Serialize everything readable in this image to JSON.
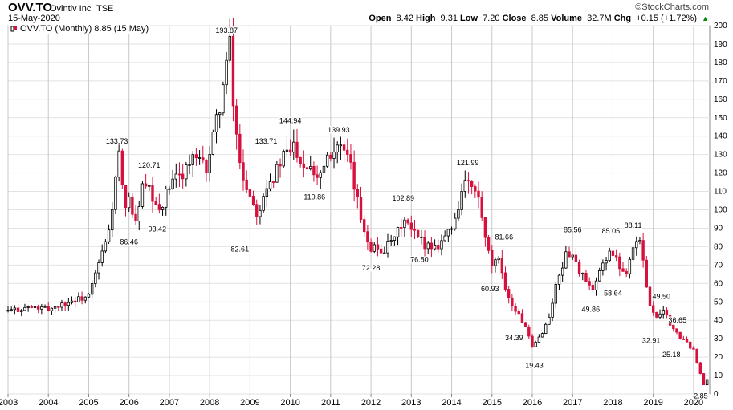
{
  "header": {
    "symbol": "OVV.TO",
    "company": "Ovintiv Inc",
    "exchange": "TSE",
    "date": "15-May-2020",
    "credit": "©StockCharts.com",
    "open_label": "Open",
    "open": "8.42",
    "high_label": "High",
    "high": "9.31",
    "low_label": "Low",
    "low": "7.20",
    "close_label": "Close",
    "close": "8.85",
    "volume_label": "Volume",
    "volume": "32.7M",
    "chg_label": "Chg",
    "chg": "+0.15 (+1.72%)",
    "chg_arrow": "▲"
  },
  "legend": {
    "text": "OVV.TO (Monthly) 8.85 (15 May)"
  },
  "chart_data": {
    "type": "candlestick",
    "title": "OVV.TO (Monthly) 8.85 (15 May)",
    "x_range": [
      2003.0,
      2020.4
    ],
    "ylim": [
      0,
      200
    ],
    "y_ticks": [
      0,
      10,
      20,
      30,
      40,
      50,
      60,
      70,
      80,
      90,
      100,
      110,
      120,
      130,
      140,
      150,
      160,
      170,
      180,
      190,
      200
    ],
    "x_ticks": [
      "2003",
      "2004",
      "2005",
      "2006",
      "2007",
      "2008",
      "2009",
      "2010",
      "2011",
      "2012",
      "2013",
      "2014",
      "2015",
      "2016",
      "2017",
      "2018",
      "2019",
      "2020"
    ],
    "grid": true,
    "colors": {
      "up": "#000000",
      "down": "#d6113d"
    },
    "anchors": [
      [
        2003.0,
        45
      ],
      [
        2003.5,
        47
      ],
      [
        2004.0,
        46
      ],
      [
        2004.5,
        50
      ],
      [
        2005.0,
        53
      ],
      [
        2005.5,
        88
      ],
      [
        2005.75,
        130
      ],
      [
        2005.9,
        96
      ],
      [
        2006.0,
        110
      ],
      [
        2006.15,
        89
      ],
      [
        2006.3,
        112
      ],
      [
        2006.5,
        110
      ],
      [
        2006.7,
        98
      ],
      [
        2007.0,
        112
      ],
      [
        2007.3,
        120
      ],
      [
        2007.6,
        128
      ],
      [
        2007.9,
        122
      ],
      [
        2008.1,
        140
      ],
      [
        2008.4,
        175
      ],
      [
        2008.5,
        190
      ],
      [
        2008.6,
        150
      ],
      [
        2008.8,
        120
      ],
      [
        2009.0,
        108
      ],
      [
        2009.2,
        98
      ],
      [
        2009.4,
        115
      ],
      [
        2009.6,
        118
      ],
      [
        2009.8,
        128
      ],
      [
        2010.0,
        132
      ],
      [
        2010.1,
        136
      ],
      [
        2010.3,
        125
      ],
      [
        2010.5,
        125
      ],
      [
        2010.7,
        118
      ],
      [
        2010.9,
        130
      ],
      [
        2011.2,
        136
      ],
      [
        2011.5,
        122
      ],
      [
        2011.7,
        100
      ],
      [
        2011.9,
        85
      ],
      [
        2012.0,
        80
      ],
      [
        2012.3,
        78
      ],
      [
        2012.6,
        84
      ],
      [
        2012.8,
        95
      ],
      [
        2013.0,
        88
      ],
      [
        2013.3,
        82
      ],
      [
        2013.6,
        80
      ],
      [
        2013.8,
        85
      ],
      [
        2014.0,
        90
      ],
      [
        2014.2,
        105
      ],
      [
        2014.3,
        115
      ],
      [
        2014.5,
        112
      ],
      [
        2014.7,
        104
      ],
      [
        2014.85,
        80
      ],
      [
        2015.0,
        70
      ],
      [
        2015.2,
        72
      ],
      [
        2015.4,
        52
      ],
      [
        2015.6,
        45
      ],
      [
        2015.8,
        38
      ],
      [
        2016.0,
        25
      ],
      [
        2016.15,
        30
      ],
      [
        2016.4,
        40
      ],
      [
        2016.6,
        60
      ],
      [
        2016.8,
        74
      ],
      [
        2016.95,
        78
      ],
      [
        2017.1,
        70
      ],
      [
        2017.3,
        62
      ],
      [
        2017.5,
        55
      ],
      [
        2017.7,
        68
      ],
      [
        2017.9,
        78
      ],
      [
        2018.1,
        72
      ],
      [
        2018.3,
        65
      ],
      [
        2018.5,
        80
      ],
      [
        2018.65,
        85
      ],
      [
        2018.8,
        64
      ],
      [
        2018.95,
        45
      ],
      [
        2019.1,
        42
      ],
      [
        2019.25,
        47
      ],
      [
        2019.4,
        38
      ],
      [
        2019.6,
        32
      ],
      [
        2019.8,
        28
      ],
      [
        2020.0,
        24
      ],
      [
        2020.15,
        12
      ],
      [
        2020.25,
        5
      ],
      [
        2020.37,
        8.85
      ]
    ],
    "annotations": [
      {
        "text": "193.87",
        "x": 2008.42,
        "y": 193.87,
        "pos": "above"
      },
      {
        "text": "133.73",
        "x": 2005.7,
        "y": 133.73,
        "pos": "above"
      },
      {
        "text": "120.71",
        "x": 2006.5,
        "y": 120.71,
        "pos": "above"
      },
      {
        "text": "86.46",
        "x": 2006.0,
        "y": 86.46,
        "pos": "below"
      },
      {
        "text": "93.42",
        "x": 2006.7,
        "y": 93.42,
        "pos": "below"
      },
      {
        "text": "82.61",
        "x": 2008.75,
        "y": 82.61,
        "pos": "below"
      },
      {
        "text": "133.71",
        "x": 2009.4,
        "y": 133.71,
        "pos": "above"
      },
      {
        "text": "144.94",
        "x": 2010.0,
        "y": 144.94,
        "pos": "above"
      },
      {
        "text": "110.86",
        "x": 2010.6,
        "y": 110.86,
        "pos": "below"
      },
      {
        "text": "139.93",
        "x": 2011.2,
        "y": 139.93,
        "pos": "above"
      },
      {
        "text": "72.28",
        "x": 2012.0,
        "y": 72.28,
        "pos": "below"
      },
      {
        "text": "102.89",
        "x": 2012.8,
        "y": 102.89,
        "pos": "above"
      },
      {
        "text": "76.80",
        "x": 2013.2,
        "y": 76.8,
        "pos": "below"
      },
      {
        "text": "121.99",
        "x": 2014.4,
        "y": 121.99,
        "pos": "above"
      },
      {
        "text": "81.66",
        "x": 2015.3,
        "y": 81.66,
        "pos": "above"
      },
      {
        "text": "60.93",
        "x": 2014.95,
        "y": 60.93,
        "pos": "below"
      },
      {
        "text": "34.39",
        "x": 2015.55,
        "y": 34.39,
        "pos": "below"
      },
      {
        "text": "19.43",
        "x": 2016.05,
        "y": 19.43,
        "pos": "below"
      },
      {
        "text": "85.56",
        "x": 2017.0,
        "y": 85.56,
        "pos": "above"
      },
      {
        "text": "49.86",
        "x": 2017.45,
        "y": 49.86,
        "pos": "below"
      },
      {
        "text": "85.05",
        "x": 2017.95,
        "y": 85.05,
        "pos": "above"
      },
      {
        "text": "58.64",
        "x": 2018.0,
        "y": 58.64,
        "pos": "below"
      },
      {
        "text": "88.11",
        "x": 2018.5,
        "y": 88.11,
        "pos": "above"
      },
      {
        "text": "49.50",
        "x": 2019.2,
        "y": 49.5,
        "pos": "above"
      },
      {
        "text": "32.91",
        "x": 2018.95,
        "y": 32.91,
        "pos": "below"
      },
      {
        "text": "36.65",
        "x": 2019.6,
        "y": 36.65,
        "pos": "above"
      },
      {
        "text": "25.18",
        "x": 2019.45,
        "y": 25.18,
        "pos": "below"
      },
      {
        "text": "2.85",
        "x": 2020.18,
        "y": 2.85,
        "pos": "below"
      }
    ]
  }
}
